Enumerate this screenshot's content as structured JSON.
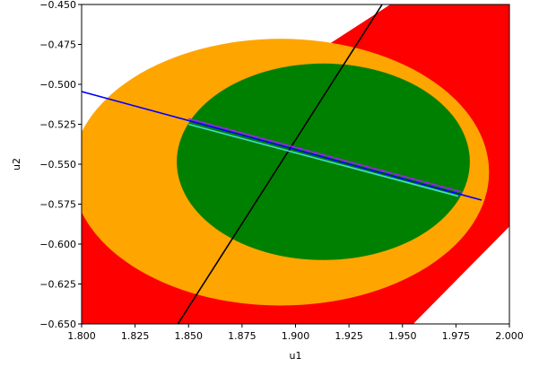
{
  "chart_data": {
    "type": "line",
    "xlabel": "u1",
    "ylabel": "u2",
    "xlim": [
      1.8,
      2.0
    ],
    "ylim": [
      -0.65,
      -0.45
    ],
    "grid": false,
    "x_ticks": [
      "1.800",
      "1.825",
      "1.850",
      "1.875",
      "1.900",
      "1.925",
      "1.950",
      "1.975",
      "2.000"
    ],
    "y_ticks": [
      "−0.450",
      "−0.475",
      "−0.500",
      "−0.525",
      "−0.550",
      "−0.575",
      "−0.600",
      "−0.625",
      "−0.650"
    ],
    "regions": [
      {
        "shape": "polygon",
        "color": "#ff0000",
        "points": [
          [
            1.8,
            -0.575
          ],
          [
            1.8,
            -0.65
          ],
          [
            1.955,
            -0.65
          ],
          [
            2.0,
            -0.589
          ],
          [
            2.0,
            -0.449
          ],
          [
            1.9455,
            -0.449
          ]
        ]
      },
      {
        "shape": "ellipse",
        "color": "#ffa500",
        "center": [
          1.893,
          -0.555
        ],
        "semi_axes": [
          0.0975,
          0.0835
        ]
      },
      {
        "shape": "ellipse",
        "color": "#008000",
        "center": [
          1.913,
          -0.5485
        ],
        "semi_axes": [
          0.0685,
          0.0615
        ]
      }
    ],
    "series": [
      {
        "color": "#000000",
        "x": [
          1.845,
          1.9405
        ],
        "y": [
          -0.65,
          -0.45
        ]
      },
      {
        "color": "#0000ff",
        "x": [
          1.8,
          1.987
        ],
        "y": [
          -0.5045,
          -0.5725
        ]
      },
      {
        "color": "#a020f0",
        "x": [
          1.85,
          1.978
        ],
        "y": [
          -0.5215,
          -0.5675
        ]
      },
      {
        "color": "#40e0d0",
        "x": [
          1.85,
          1.976
        ],
        "y": [
          -0.525,
          -0.57
        ]
      }
    ]
  }
}
